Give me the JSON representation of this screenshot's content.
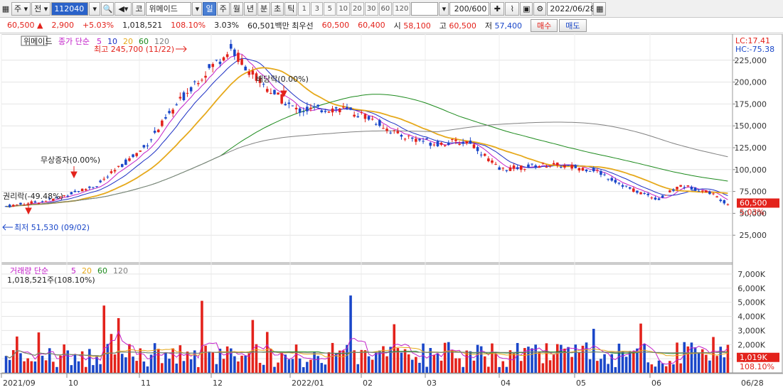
{
  "toolbar": {
    "cb_ju": "주",
    "cb_jeon": "전",
    "code": "112040",
    "market": "코",
    "stock_name": "위메이드",
    "period_tabs": [
      "일",
      "주",
      "월",
      "년",
      "분",
      "초",
      "틱"
    ],
    "active_period": "일",
    "interval_nums": [
      "1",
      "3",
      "5",
      "10",
      "20",
      "30",
      "60",
      "120"
    ],
    "count": "200/600",
    "date": "2022/06/28"
  },
  "quote": {
    "price": "60,500",
    "change": "2,900",
    "change_pct": "+5.03%",
    "volume": "1,018,521",
    "volume_ratio": "108.10%",
    "turnover": "3.03%",
    "amount": "60,501백만",
    "best_ask_label": "최우선",
    "best_ask": "60,500",
    "best_bid": "60,400",
    "open_label": "시",
    "open": "58,100",
    "high_label": "고",
    "high": "60,500",
    "low_label": "저",
    "low": "57,400",
    "buy_label": "매수",
    "sell_label": "매도"
  },
  "chart_data": {
    "type": "candlestick",
    "title": "위메이드",
    "legend": {
      "price_label": "종가 단순",
      "ma": [
        "5",
        "10",
        "20",
        "60",
        "120"
      ],
      "colors": [
        "#c21fc9",
        "#1c2fc4",
        "#e6a91b",
        "#1c8a1c",
        "#808080"
      ]
    },
    "ylim": [
      0,
      250000
    ],
    "y_ticks": [
      "25,000",
      "50,000",
      "75,000",
      "100,000",
      "125,000",
      "150,000",
      "175,000",
      "200,000",
      "225,000"
    ],
    "x_ticks": [
      "2021/09",
      "10",
      "11",
      "12",
      "2022/01",
      "02",
      "03",
      "04",
      "05",
      "06",
      "06/28"
    ],
    "right_header": {
      "lc": "LC:17.41",
      "hc": "HC:-75.38"
    },
    "current_price_label": "60,500",
    "current_change_label": "5.03%",
    "annotations": [
      {
        "label": "최고 245,700 (11/22)",
        "value": 245700
      },
      {
        "label": "배당락(0.00%)"
      },
      {
        "label": "무상증자(0.00%)"
      },
      {
        "label": "권리락(-49.48%)"
      },
      {
        "label": "최저 51,530 (09/02)",
        "value": 51530
      }
    ],
    "volume": {
      "label": "거래량 단순",
      "ma": [
        "5",
        "20",
        "60",
        "120"
      ],
      "ylim": [
        0,
        7500000
      ],
      "y_ticks": [
        "1,000K",
        "2,000K",
        "3,000K",
        "4,000K",
        "5,000K",
        "6,000K",
        "7,000K"
      ],
      "current_label": "1,019K",
      "current_ratio_label": "108.10%",
      "top_annotation": "1,018,521주(108.10%)"
    }
  }
}
